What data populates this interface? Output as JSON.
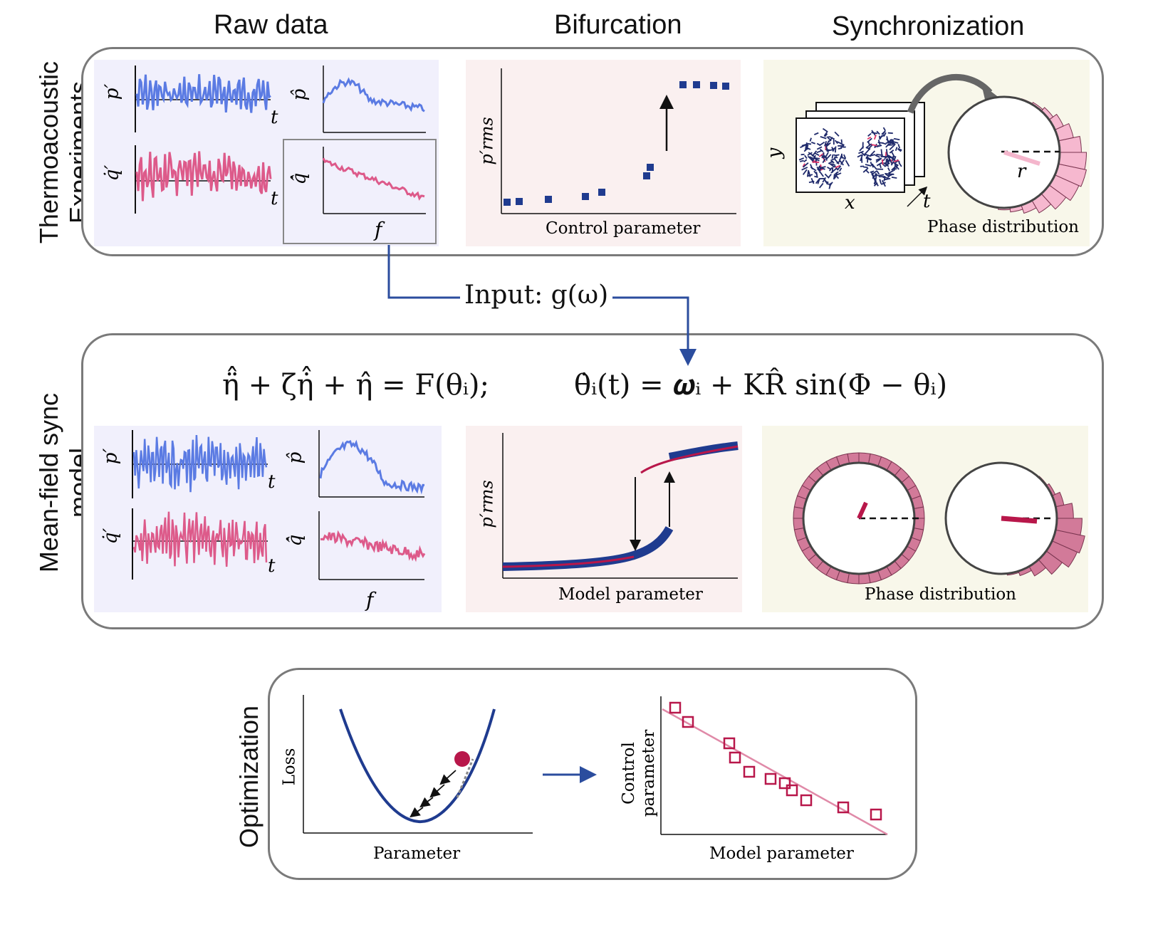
{
  "headers": {
    "raw_data": "Raw data",
    "bifurcation": "Bifurcation",
    "synchronization": "Synchronization"
  },
  "row_labels": {
    "experiments_line1": "Thermoacoustic",
    "experiments_line2": "Experiments",
    "model_line1": "Mean-field sync",
    "model_line2": "model",
    "optimization": "Optimization"
  },
  "raw_axes": {
    "p_prime": "p′",
    "q_prime": "q̇′",
    "p_hat": "p̂",
    "q_hat": "q̇̂",
    "t": "t",
    "f": "f"
  },
  "experiment_bifurcation": {
    "ylabel": "p′rms",
    "xlabel": "Control parameter"
  },
  "experiment_sync": {
    "x": "x",
    "y": "y",
    "t": "t",
    "r": "r",
    "caption": "Phase distribution"
  },
  "input_label": "Input:  g(ω)",
  "equation_left": "η̈̂ + ζη̇̂ + η̂ = F(θᵢ);",
  "equation_right": "θ̇ᵢ(t) = 𝝎ᵢ + KR̂ sin(Φ − θᵢ)",
  "model_bifurcation": {
    "ylabel": "p′rms",
    "xlabel": "Model parameter"
  },
  "model_sync": {
    "caption": "Phase distribution"
  },
  "optimization": {
    "loss_ylabel": "Loss",
    "loss_xlabel": "Parameter",
    "scatter_ylabel_line1": "Control",
    "scatter_ylabel_line2": "parameter",
    "scatter_xlabel": "Model parameter"
  },
  "colors": {
    "blue": "#5b7be3",
    "pink": "#dd5a8a",
    "navy": "#1f3b8f",
    "crimson": "#b8174a",
    "lavender_bg": "#f1f0fc",
    "pink_bg": "#faf0f0",
    "cream_bg": "#f8f7ea"
  }
}
